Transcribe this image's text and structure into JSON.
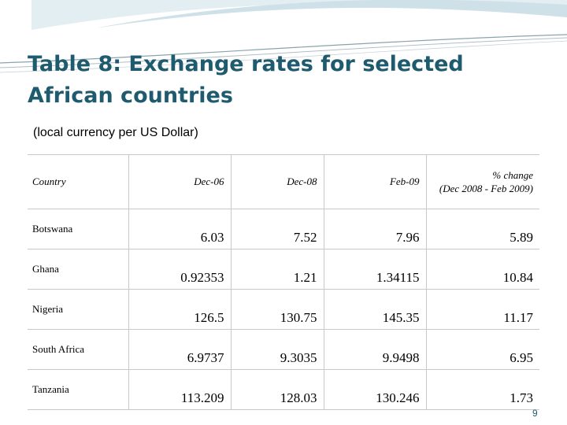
{
  "slide": {
    "title_line1": "Table 8: Exchange rates for selected",
    "title_line2": "African countries",
    "subtitle": "(local currency per US Dollar)",
    "page_number": "9",
    "colors": {
      "title": "#1f5b6e",
      "header_band": "#d7e6ec"
    }
  },
  "table": {
    "headers": {
      "country": "Country",
      "dec06": "Dec-06",
      "dec08": "Dec-08",
      "feb09": "Feb-09",
      "pct_line1": "% change",
      "pct_line2": "(Dec 2008 - Feb 2009)"
    },
    "rows": [
      {
        "country": "Botswana",
        "dec06": "6.03",
        "dec08": "7.52",
        "feb09": "7.96",
        "pct": "5.89"
      },
      {
        "country": "Ghana",
        "dec06": "0.92353",
        "dec08": "1.21",
        "feb09": "1.34115",
        "pct": "10.84"
      },
      {
        "country": "Nigeria",
        "dec06": "126.5",
        "dec08": "130.75",
        "feb09": "145.35",
        "pct": "11.17"
      },
      {
        "country": "South Africa",
        "dec06": "6.9737",
        "dec08": "9.3035",
        "feb09": "9.9498",
        "pct": "6.95"
      },
      {
        "country": "Tanzania",
        "dec06": "113.209",
        "dec08": "128.03",
        "feb09": "130.246",
        "pct": "1.73"
      }
    ]
  }
}
